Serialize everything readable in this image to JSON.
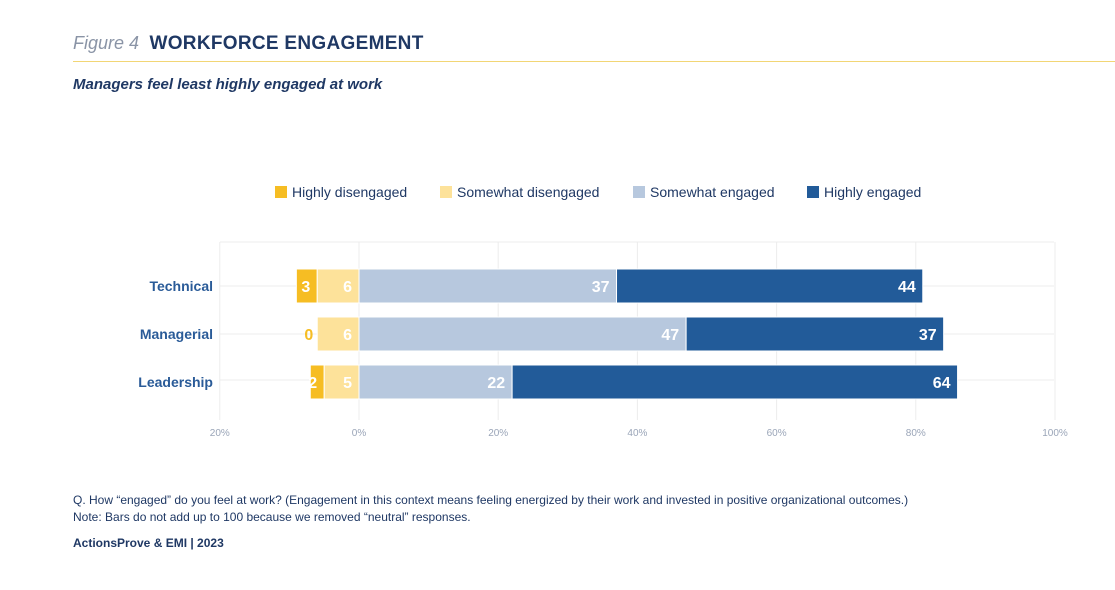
{
  "figure": {
    "label": "Figure 4",
    "title": "WORKFORCE ENGAGEMENT"
  },
  "subtitle": "Managers feel least highly engaged at work",
  "notes": {
    "question": "Q. How “engaged” do you feel at work? (Engagement in this context means feeling energized by their work and invested in positive organizational outcomes.)",
    "note": "Note: Bars do not add up to 100 because we removed “neutral” responses.",
    "source": "ActionsProve & EMI | 2023"
  },
  "colors": {
    "highly_disengaged": "#f6bd23",
    "somewhat_disengaged": "#fde29a",
    "somewhat_engaged": "#b7c8de",
    "highly_engaged": "#225b99"
  },
  "chart_data": {
    "type": "bar",
    "orientation": "horizontal",
    "stacked": "diverging",
    "categories": [
      "Technical",
      "Managerial",
      "Leadership"
    ],
    "series": [
      {
        "name": "Highly disengaged",
        "side": "negative",
        "values": [
          3,
          0,
          2
        ]
      },
      {
        "name": "Somewhat disengaged",
        "side": "negative",
        "values": [
          6,
          6,
          5
        ]
      },
      {
        "name": "Somewhat engaged",
        "side": "positive",
        "values": [
          37,
          47,
          22
        ]
      },
      {
        "name": "Highly engaged",
        "side": "positive",
        "values": [
          44,
          37,
          64
        ]
      }
    ],
    "x_ticks": [
      "20%",
      "0%",
      "20%",
      "40%",
      "60%",
      "80%",
      "100%"
    ],
    "xlim": [
      -20,
      100
    ],
    "grid": true,
    "legend_position": "top"
  }
}
